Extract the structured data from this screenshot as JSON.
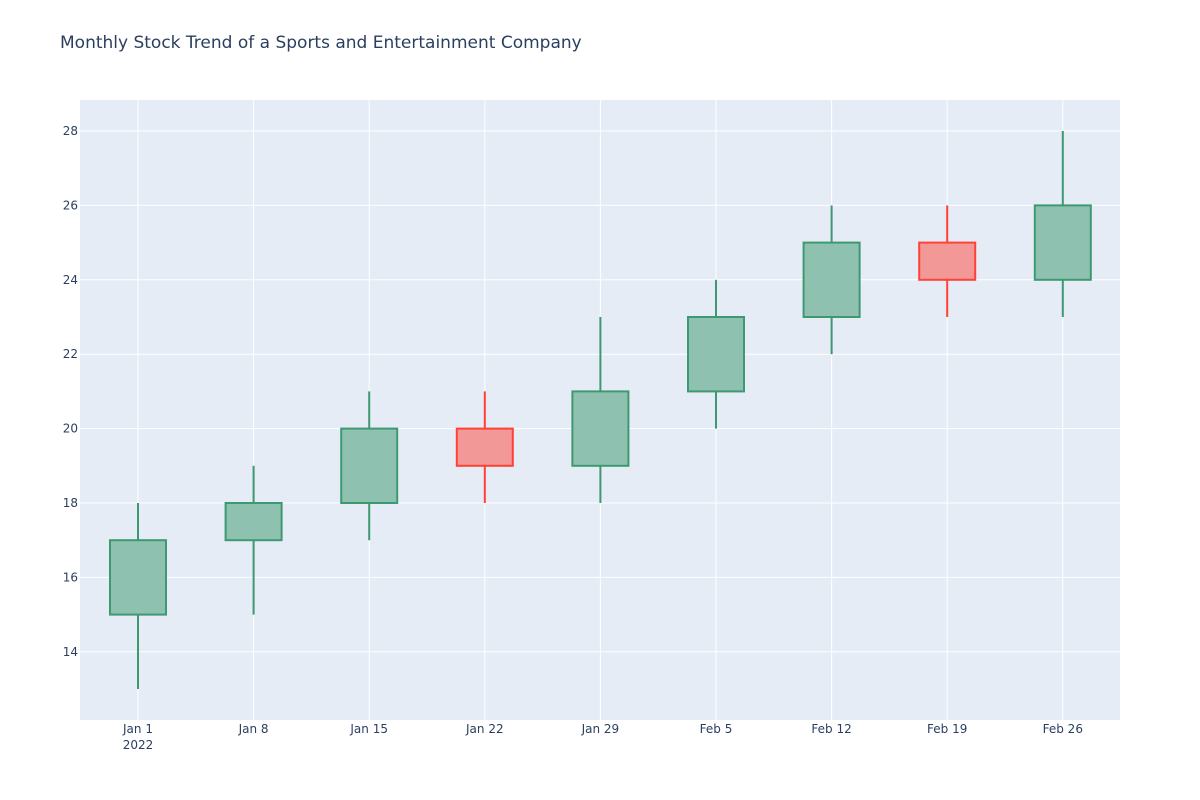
{
  "chart_data": {
    "type": "candlestick",
    "title": "Monthly Stock Trend of a Sports and Entertainment Company",
    "xlabel": "",
    "ylabel": "",
    "x": [
      "2022-01-01",
      "2022-01-08",
      "2022-01-15",
      "2022-01-22",
      "2022-01-29",
      "2022-02-05",
      "2022-02-12",
      "2022-02-19",
      "2022-02-26"
    ],
    "open": [
      15,
      17,
      18,
      20,
      19,
      21,
      23,
      25,
      24
    ],
    "high": [
      18,
      19,
      21,
      21,
      23,
      24,
      26,
      26,
      28
    ],
    "low": [
      13,
      15,
      17,
      18,
      18,
      20,
      22,
      23,
      23
    ],
    "close": [
      17,
      18,
      20,
      19,
      21,
      23,
      25,
      24,
      26
    ],
    "x_tick_labels": [
      "Jan 1",
      "Jan 8",
      "Jan 15",
      "Jan 22",
      "Jan 29",
      "Feb 5",
      "Feb 12",
      "Feb 19",
      "Feb 26"
    ],
    "x_year_label": "2022",
    "y_ticks": [
      14,
      16,
      18,
      20,
      22,
      24,
      26,
      28
    ],
    "ylim": [
      12.2,
      28.8
    ],
    "grid": true,
    "colors": {
      "increasing": "#3d9970",
      "increasing_fill": "#8fc1b0",
      "decreasing": "#ff4136",
      "decreasing_fill": "#f29896",
      "plot_bg": "#e5ecf6",
      "grid": "#ffffff",
      "text": "#2a3f5f"
    }
  }
}
